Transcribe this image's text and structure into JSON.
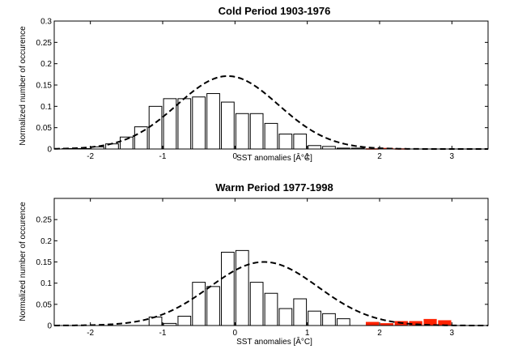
{
  "chart_data": [
    {
      "type": "bar",
      "title": "Cold Period 1903-1976",
      "xlabel": "SST anomalies [Â°C]",
      "ylabel": "Normalized number of occurence",
      "xlim": [
        -2.5,
        3.5
      ],
      "ylim": [
        0,
        0.3
      ],
      "xticks": [
        "-2",
        "-1",
        "0",
        "1",
        "2",
        "3"
      ],
      "yticks": [
        "0",
        "0.05",
        "0.1",
        "0.15",
        "0.2",
        "0.25",
        "0.3"
      ],
      "bin_width": 0.2,
      "x": [
        -2.3,
        -2.1,
        -1.9,
        -1.7,
        -1.5,
        -1.3,
        -1.1,
        -0.9,
        -0.7,
        -0.5,
        -0.3,
        -0.1,
        0.1,
        0.3,
        0.5,
        0.7,
        0.9,
        1.1,
        1.3,
        1.5,
        1.7,
        1.9,
        2.1,
        2.3,
        2.5,
        2.7,
        2.9,
        3.1,
        3.3
      ],
      "values": [
        0.001,
        0.001,
        0.005,
        0.012,
        0.028,
        0.052,
        0.1,
        0.118,
        0.118,
        0.122,
        0.13,
        0.11,
        0.083,
        0.083,
        0.06,
        0.035,
        0.035,
        0.008,
        0.006,
        0.002,
        0.002,
        0,
        0,
        0,
        0,
        0,
        0,
        0,
        0
      ],
      "highlight_values": [
        0,
        0,
        0,
        0,
        0,
        0,
        0,
        0,
        0,
        0,
        0,
        0,
        0,
        0,
        0,
        0,
        0,
        0,
        0,
        0,
        0,
        0.001,
        0.002,
        0.001,
        0,
        0,
        0,
        0,
        0
      ],
      "curve": {
        "mean": -0.1,
        "std": 0.7,
        "peak": 0.171
      },
      "colors": {
        "bar_fill": "#ffffff",
        "bar_edge": "#000000",
        "highlight": "#ff2200",
        "curve": "#000000"
      }
    },
    {
      "type": "bar",
      "title": "Warm Period 1977-1998",
      "xlabel": "SST anomalies [Â°C]",
      "ylabel": "Normalized number of occurence",
      "xlim": [
        -2.5,
        3.5
      ],
      "ylim": [
        0,
        0.3
      ],
      "xticks": [
        "-2",
        "-1",
        "0",
        "1",
        "2",
        "3"
      ],
      "yticks": [
        "0",
        "0.05",
        "0.1",
        "0.15",
        "0.2",
        "0.25"
      ],
      "bin_width": 0.2,
      "x": [
        -2.3,
        -2.1,
        -1.9,
        -1.7,
        -1.5,
        -1.3,
        -1.1,
        -0.9,
        -0.7,
        -0.5,
        -0.3,
        -0.1,
        0.1,
        0.3,
        0.5,
        0.7,
        0.9,
        1.1,
        1.3,
        1.5,
        1.7,
        1.9,
        2.1,
        2.3,
        2.5,
        2.7,
        2.9,
        3.1,
        3.3
      ],
      "values": [
        0,
        0,
        0,
        0,
        0,
        0,
        0.02,
        0.005,
        0.022,
        0.102,
        0.092,
        0.173,
        0.177,
        0.102,
        0.076,
        0.04,
        0.063,
        0.034,
        0.028,
        0.016,
        0,
        0,
        0,
        0,
        0,
        0,
        0,
        0,
        0
      ],
      "highlight_values": [
        0,
        0,
        0,
        0,
        0,
        0,
        0,
        0,
        0,
        0,
        0,
        0,
        0,
        0,
        0,
        0,
        0,
        0,
        0,
        0,
        0,
        0.008,
        0.005,
        0.01,
        0.01,
        0.015,
        0.012,
        0,
        0
      ],
      "curve": {
        "mean": 0.4,
        "std": 0.75,
        "peak": 0.15
      },
      "colors": {
        "bar_fill": "#ffffff",
        "bar_edge": "#000000",
        "highlight": "#ff2200",
        "curve": "#000000"
      }
    }
  ]
}
